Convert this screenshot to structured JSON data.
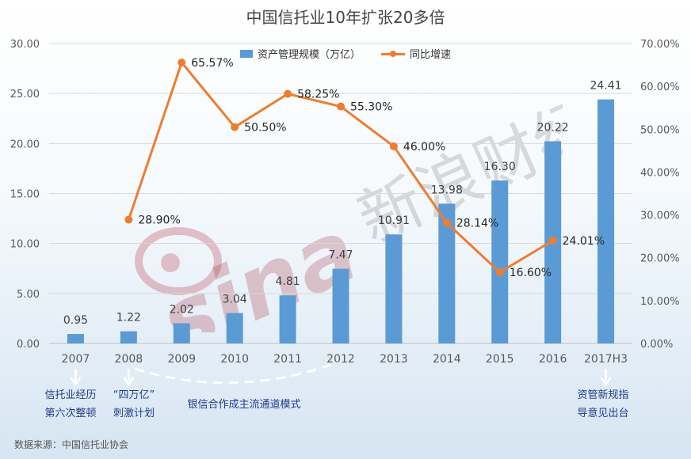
{
  "title": "中国信托业10年扩张20多倍",
  "chart_data": {
    "type": "bar+line",
    "categories": [
      "2007",
      "2008",
      "2009",
      "2010",
      "2011",
      "2012",
      "2013",
      "2014",
      "2015",
      "2016",
      "2017H3"
    ],
    "bar_series": {
      "name": "资产管理规模（万亿）",
      "values": [
        0.95,
        1.22,
        2.02,
        3.04,
        4.81,
        7.47,
        10.91,
        13.98,
        16.3,
        20.22,
        24.41
      ],
      "color": "#5b9bd5"
    },
    "line_series": {
      "name": "同比增速",
      "values": [
        null,
        28.9,
        65.57,
        50.5,
        58.25,
        55.3,
        46.0,
        28.14,
        16.6,
        24.01,
        null
      ],
      "labels": [
        "",
        "28.90%",
        "65.57%",
        "50.50%",
        "58.25%",
        "55.30%",
        "46.00%",
        "28.14%",
        "16.60%",
        "24.01%",
        ""
      ],
      "color": "#ed7d31"
    },
    "bar_labels": [
      "0.95",
      "1.22",
      "2.02",
      "3.04",
      "4.81",
      "7.47",
      "10.91",
      "13.98",
      "16.30",
      "20.22",
      "24.41"
    ],
    "y_left": {
      "min": 0,
      "max": 30,
      "ticks": [
        "0.00",
        "5.00",
        "10.00",
        "15.00",
        "20.00",
        "25.00",
        "30.00"
      ]
    },
    "y_right": {
      "min": 0,
      "max": 70,
      "ticks": [
        "0.00%",
        "10.00%",
        "20.00%",
        "30.00%",
        "40.00%",
        "50.00%",
        "60.00%",
        "70.00%"
      ]
    },
    "grid": true,
    "legend_position": "top"
  },
  "annotations": {
    "a2007_line1": "信托业经历",
    "a2007_line2": "第六次整顿",
    "a2008_line1": "“四万亿”",
    "a2008_line2": "刺激计划",
    "channel": "银信合作成主流通道模式",
    "a2017_line1": "资管新规指",
    "a2017_line2": "导意见出台"
  },
  "source": "数据来源：中国信托业协会",
  "watermark": {
    "logo": "sina",
    "text": "新浪财经"
  }
}
